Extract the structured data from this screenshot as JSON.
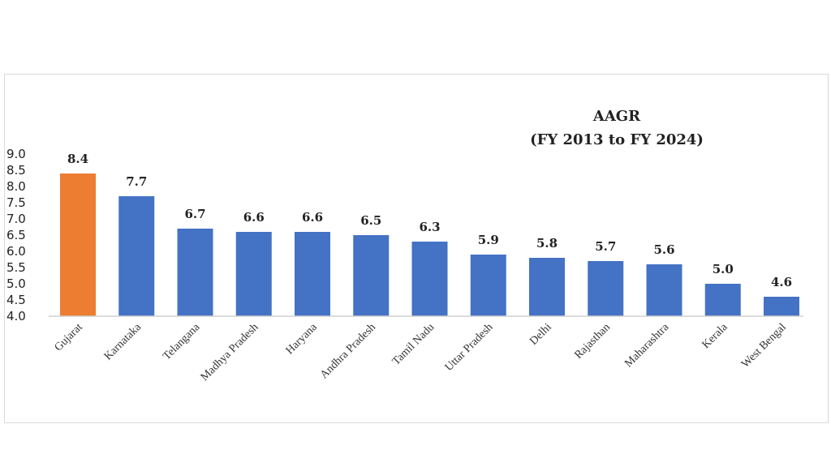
{
  "chart_data": {
    "type": "bar",
    "title": [
      "AAGR",
      "(FY 2013 to FY 2024)"
    ],
    "xlabel": "",
    "ylabel": "",
    "ylim": [
      4.0,
      9.0
    ],
    "yticks": [
      "4.0",
      "4.5",
      "5.0",
      "5.5",
      "6.0",
      "6.5",
      "7.0",
      "7.5",
      "8.0",
      "8.5",
      "9.0"
    ],
    "grid": false,
    "categories": [
      "Gujarat",
      "Karnataka",
      "Telangana",
      "Madhya Pradesh",
      "Haryana",
      "Andhra Pradesh",
      "Tamil Nadu",
      "Uttar Pradesh",
      "Delhi",
      "Rajasthan",
      "Maharashtra",
      "Kerala",
      "West Bengal"
    ],
    "values": [
      8.4,
      7.7,
      6.7,
      6.6,
      6.6,
      6.5,
      6.3,
      5.9,
      5.8,
      5.7,
      5.6,
      5.0,
      4.6
    ],
    "data_labels": [
      "8.4",
      "7.7",
      "6.7",
      "6.6",
      "6.6",
      "6.5",
      "6.3",
      "5.9",
      "5.8",
      "5.7",
      "5.6",
      "5.0",
      "4.6"
    ],
    "colors": {
      "default": "#4472c4",
      "highlight": "#ed7d31",
      "highlight_category": "Gujarat"
    }
  }
}
